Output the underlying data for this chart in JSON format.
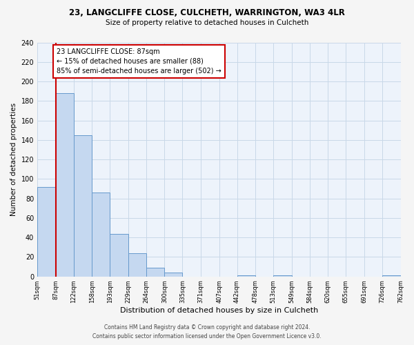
{
  "title": "23, LANGCLIFFE CLOSE, CULCHETH, WARRINGTON, WA3 4LR",
  "subtitle": "Size of property relative to detached houses in Culcheth",
  "xlabel": "Distribution of detached houses by size in Culcheth",
  "ylabel": "Number of detached properties",
  "bin_edges": [
    51,
    87,
    122,
    158,
    193,
    229,
    264,
    300,
    335,
    371,
    407,
    442,
    478,
    513,
    549,
    584,
    620,
    655,
    691,
    726,
    762
  ],
  "bin_labels": [
    "51sqm",
    "87sqm",
    "122sqm",
    "158sqm",
    "193sqm",
    "229sqm",
    "264sqm",
    "300sqm",
    "335sqm",
    "371sqm",
    "407sqm",
    "442sqm",
    "478sqm",
    "513sqm",
    "549sqm",
    "584sqm",
    "620sqm",
    "655sqm",
    "691sqm",
    "726sqm",
    "762sqm"
  ],
  "counts": [
    92,
    188,
    145,
    86,
    44,
    24,
    9,
    4,
    0,
    0,
    0,
    1,
    0,
    1,
    0,
    0,
    0,
    0,
    0,
    1
  ],
  "bar_color": "#c5d8f0",
  "bar_edge_color": "#6699cc",
  "property_line_x": 87,
  "property_line_color": "#cc0000",
  "annotation_line1": "23 LANGCLIFFE CLOSE: 87sqm",
  "annotation_line2": "← 15% of detached houses are smaller (88)",
  "annotation_line3": "85% of semi-detached houses are larger (502) →",
  "annotation_box_color": "#ffffff",
  "annotation_box_edge": "#cc0000",
  "ylim": [
    0,
    240
  ],
  "yticks": [
    0,
    20,
    40,
    60,
    80,
    100,
    120,
    140,
    160,
    180,
    200,
    220,
    240
  ],
  "grid_color": "#c8d8e8",
  "plot_bg_color": "#edf3fb",
  "fig_bg_color": "#f5f5f5",
  "footer_line1": "Contains HM Land Registry data © Crown copyright and database right 2024.",
  "footer_line2": "Contains public sector information licensed under the Open Government Licence v3.0."
}
